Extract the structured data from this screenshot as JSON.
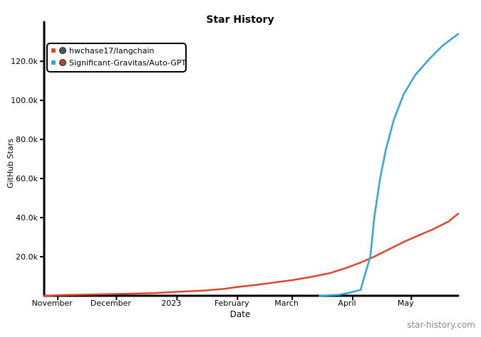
{
  "chart_data": {
    "type": "line",
    "title": "Star History",
    "xlabel": "Date",
    "ylabel": "GitHub Stars",
    "x_ticks": [
      "November",
      "December",
      "2023",
      "February",
      "March",
      "April",
      "May"
    ],
    "x_range": [
      "2022-10-25",
      "2023-05-25"
    ],
    "y_ticks": [
      "20.0k",
      "40.0k",
      "60.0k",
      "80.0k",
      "100.0k",
      "120.0k"
    ],
    "ylim": [
      0,
      135000
    ],
    "grid": false,
    "legend_position": "top-left",
    "series": [
      {
        "name": "hwchase17/langchain",
        "color": "#d9482b",
        "points": [
          [
            "2022-10-25",
            0
          ],
          [
            "2022-11-05",
            400
          ],
          [
            "2022-11-20",
            700
          ],
          [
            "2022-12-05",
            1000
          ],
          [
            "2022-12-20",
            1400
          ],
          [
            "2023-01-01",
            2000
          ],
          [
            "2023-01-15",
            2700
          ],
          [
            "2023-01-25",
            3500
          ],
          [
            "2023-02-01",
            4500
          ],
          [
            "2023-02-10",
            5500
          ],
          [
            "2023-02-20",
            6800
          ],
          [
            "2023-03-01",
            8000
          ],
          [
            "2023-03-10",
            9500
          ],
          [
            "2023-03-20",
            11500
          ],
          [
            "2023-03-28",
            14000
          ],
          [
            "2023-04-05",
            17000
          ],
          [
            "2023-04-12",
            20000
          ],
          [
            "2023-04-20",
            24000
          ],
          [
            "2023-04-28",
            28000
          ],
          [
            "2023-05-05",
            31000
          ],
          [
            "2023-05-12",
            34000
          ],
          [
            "2023-05-20",
            38000
          ],
          [
            "2023-05-25",
            42000
          ]
        ]
      },
      {
        "name": "Significant-Gravitas/Auto-GPT",
        "color": "#2ea6da",
        "points": [
          [
            "2023-03-15",
            0
          ],
          [
            "2023-03-25",
            500
          ],
          [
            "2023-03-30",
            1500
          ],
          [
            "2023-04-05",
            3000
          ],
          [
            "2023-04-07",
            10000
          ],
          [
            "2023-04-10",
            20000
          ],
          [
            "2023-04-12",
            40000
          ],
          [
            "2023-04-15",
            60000
          ],
          [
            "2023-04-18",
            75000
          ],
          [
            "2023-04-22",
            90000
          ],
          [
            "2023-04-27",
            103000
          ],
          [
            "2023-05-03",
            113000
          ],
          [
            "2023-05-10",
            121000
          ],
          [
            "2023-05-17",
            128000
          ],
          [
            "2023-05-25",
            134000
          ]
        ]
      }
    ]
  },
  "watermark": "star-history.com"
}
